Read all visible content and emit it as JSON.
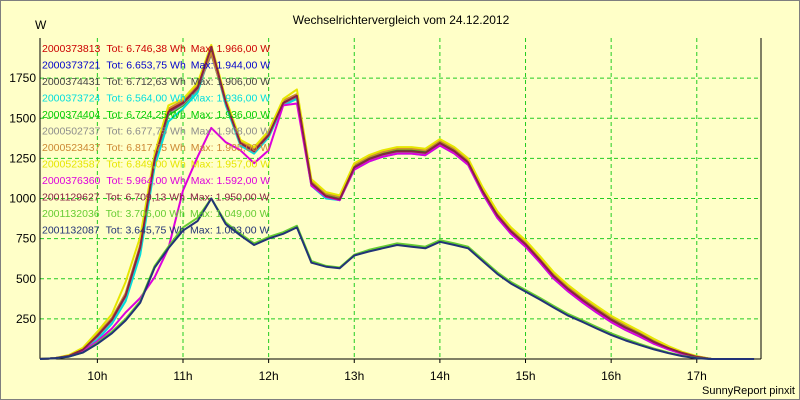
{
  "chart_data": {
    "type": "line",
    "title": "Wechselrichtervergleich vom 24.12.2012",
    "ylabel": "W",
    "footer": "SunnyReport pinxit",
    "ylim": [
      0,
      2000
    ],
    "xlim": [
      9.33,
      17.75
    ],
    "grid": true,
    "legend_placement": "top-left",
    "yticks": [
      250,
      500,
      750,
      1000,
      1250,
      1500,
      1750
    ],
    "xticks": [
      {
        "value": 10,
        "label": "10h"
      },
      {
        "value": 11,
        "label": "11h"
      },
      {
        "value": 12,
        "label": "12h"
      },
      {
        "value": 13,
        "label": "13h"
      },
      {
        "value": 14,
        "label": "14h"
      },
      {
        "value": 15,
        "label": "15h"
      },
      {
        "value": 16,
        "label": "16h"
      },
      {
        "value": 17,
        "label": "17h"
      }
    ],
    "x": [
      9.33,
      9.5,
      9.67,
      9.83,
      10.0,
      10.17,
      10.33,
      10.5,
      10.67,
      10.83,
      11.0,
      11.17,
      11.33,
      11.5,
      11.67,
      11.83,
      12.0,
      12.17,
      12.33,
      12.5,
      12.67,
      12.83,
      13.0,
      13.17,
      13.33,
      13.5,
      13.67,
      13.83,
      14.0,
      14.17,
      14.33,
      14.5,
      14.67,
      14.83,
      15.0,
      15.17,
      15.33,
      15.5,
      15.67,
      15.83,
      16.0,
      16.17,
      16.33,
      16.5,
      16.67,
      16.83,
      17.0,
      17.17,
      17.33,
      17.5,
      17.67
    ],
    "series": [
      {
        "name": "2000373813",
        "total": "Tot: 6.746,38 Wh",
        "max": "Max: 1.966,00 W",
        "color": "#cc0000",
        "values": [
          0,
          5,
          20,
          60,
          150,
          250,
          400,
          700,
          1250,
          1550,
          1600,
          1700,
          1950,
          1600,
          1350,
          1300,
          1400,
          1600,
          1650,
          1100,
          1020,
          1000,
          1200,
          1250,
          1280,
          1300,
          1300,
          1290,
          1350,
          1300,
          1230,
          1050,
          900,
          800,
          720,
          620,
          520,
          440,
          370,
          310,
          250,
          200,
          160,
          110,
          70,
          40,
          15,
          0,
          0,
          0,
          0
        ]
      },
      {
        "name": "2000373721",
        "total": "Tot: 6.653,75 Wh",
        "max": "Max: 1.944,00 W",
        "color": "#0000cc",
        "values": [
          0,
          5,
          18,
          55,
          140,
          240,
          390,
          690,
          1240,
          1530,
          1590,
          1680,
          1935,
          1590,
          1340,
          1290,
          1390,
          1590,
          1630,
          1090,
          1010,
          990,
          1190,
          1240,
          1270,
          1290,
          1290,
          1280,
          1340,
          1290,
          1220,
          1040,
          890,
          790,
          710,
          610,
          510,
          430,
          360,
          300,
          240,
          190,
          150,
          100,
          65,
          35,
          12,
          0,
          0,
          0,
          0
        ]
      },
      {
        "name": "2000374431",
        "total": "Tot: 6.712,63 Wh",
        "max": "Max: 1.906,00 W",
        "color": "#444444",
        "values": [
          0,
          5,
          20,
          58,
          145,
          245,
          395,
          695,
          1245,
          1540,
          1595,
          1690,
          1900,
          1600,
          1345,
          1295,
          1395,
          1595,
          1640,
          1095,
          1015,
          995,
          1195,
          1245,
          1275,
          1295,
          1295,
          1285,
          1345,
          1295,
          1225,
          1045,
          895,
          795,
          715,
          615,
          515,
          435,
          365,
          305,
          245,
          195,
          155,
          105,
          68,
          38,
          14,
          0,
          0,
          0,
          0
        ]
      },
      {
        "name": "2000373724",
        "total": "Tot: 6.564,00 Wh",
        "max": "Max: 1.936,00 W",
        "color": "#00dddd",
        "values": [
          0,
          5,
          18,
          50,
          120,
          220,
          360,
          650,
          1200,
          1480,
          1560,
          1660,
          1925,
          1580,
          1330,
          1280,
          1380,
          1580,
          1620,
          1080,
          1000,
          990,
          1180,
          1230,
          1260,
          1280,
          1280,
          1270,
          1330,
          1280,
          1210,
          1030,
          880,
          780,
          700,
          600,
          500,
          420,
          350,
          290,
          230,
          180,
          140,
          95,
          60,
          32,
          10,
          0,
          0,
          0,
          0
        ]
      },
      {
        "name": "2000374404",
        "total": "Tot: 6.724,25 Wh",
        "max": "Max: 1.936,00 W",
        "color": "#00cc00",
        "values": [
          0,
          5,
          20,
          58,
          145,
          245,
          395,
          700,
          1240,
          1520,
          1580,
          1680,
          1930,
          1600,
          1345,
          1300,
          1395,
          1595,
          1640,
          1095,
          1020,
          1000,
          1200,
          1250,
          1280,
          1300,
          1300,
          1290,
          1350,
          1300,
          1230,
          1050,
          900,
          800,
          720,
          620,
          520,
          440,
          370,
          310,
          250,
          200,
          160,
          110,
          70,
          40,
          15,
          0,
          0,
          0,
          0
        ]
      },
      {
        "name": "2000502737",
        "total": "Tot: 6.677,75 Wh",
        "max": "Max: 1.908,00 W",
        "color": "#8c8c8c",
        "values": [
          0,
          5,
          20,
          55,
          140,
          240,
          390,
          690,
          1235,
          1530,
          1585,
          1680,
          1905,
          1595,
          1340,
          1290,
          1390,
          1590,
          1635,
          1090,
          1015,
          995,
          1195,
          1240,
          1270,
          1290,
          1290,
          1280,
          1340,
          1290,
          1220,
          1040,
          890,
          790,
          710,
          610,
          510,
          430,
          360,
          300,
          240,
          190,
          150,
          100,
          65,
          35,
          12,
          0,
          0,
          0,
          0
        ]
      },
      {
        "name": "2000523437",
        "total": "Tot: 6.817,75 Wh",
        "max": "Max: 1.905,00 W",
        "color": "#cc8833",
        "values": [
          0,
          5,
          22,
          62,
          155,
          255,
          410,
          710,
          1260,
          1560,
          1610,
          1710,
          1905,
          1610,
          1355,
          1310,
          1410,
          1610,
          1650,
          1110,
          1030,
          1010,
          1210,
          1260,
          1290,
          1310,
          1310,
          1300,
          1360,
          1310,
          1240,
          1060,
          910,
          810,
          730,
          630,
          530,
          450,
          380,
          320,
          260,
          210,
          170,
          120,
          75,
          42,
          16,
          0,
          0,
          0,
          0
        ]
      },
      {
        "name": "2000523587",
        "total": "Tot: 6.849,00 Wh",
        "max": "Max: 1.957,00 W",
        "color": "#e6e600",
        "values": [
          0,
          5,
          25,
          70,
          170,
          280,
          480,
          760,
          1280,
          1580,
          1620,
          1720,
          1957,
          1620,
          1365,
          1320,
          1420,
          1620,
          1680,
          1120,
          1040,
          1020,
          1220,
          1270,
          1300,
          1320,
          1320,
          1310,
          1370,
          1320,
          1250,
          1070,
          920,
          820,
          740,
          640,
          540,
          460,
          390,
          330,
          270,
          220,
          175,
          125,
          80,
          45,
          18,
          0,
          0,
          0,
          0
        ]
      },
      {
        "name": "2000376360",
        "total": "Tot: 5.964,00 Wh",
        "max": "Max: 1.592,00 W",
        "color": "#dd00dd",
        "values": [
          0,
          5,
          18,
          50,
          110,
          190,
          290,
          380,
          510,
          690,
          1050,
          1260,
          1440,
          1350,
          1300,
          1220,
          1300,
          1580,
          1592,
          1080,
          1010,
          990,
          1180,
          1230,
          1260,
          1280,
          1280,
          1270,
          1330,
          1280,
          1210,
          1030,
          880,
          780,
          700,
          600,
          500,
          420,
          350,
          290,
          230,
          180,
          140,
          95,
          60,
          32,
          10,
          0,
          0,
          0,
          0
        ]
      },
      {
        "name": "2001129627",
        "total": "Tot: 6.709,13 Wh",
        "max": "Max: 1.950,00 W",
        "color": "#882244",
        "values": [
          0,
          5,
          20,
          58,
          145,
          245,
          395,
          695,
          1245,
          1540,
          1595,
          1690,
          1945,
          1600,
          1345,
          1295,
          1395,
          1595,
          1640,
          1095,
          1015,
          995,
          1195,
          1245,
          1275,
          1295,
          1295,
          1285,
          1345,
          1295,
          1225,
          1045,
          895,
          795,
          715,
          615,
          515,
          435,
          365,
          305,
          245,
          195,
          155,
          105,
          68,
          38,
          14,
          0,
          0,
          0,
          0
        ]
      },
      {
        "name": "2001132036",
        "total": "Tot: 3.706,00 Wh",
        "max": "Max: 1.049,00 W",
        "color": "#66cc33",
        "values": [
          0,
          5,
          15,
          40,
          100,
          170,
          250,
          360,
          580,
          700,
          820,
          880,
          1000,
          850,
          780,
          720,
          760,
          790,
          830,
          610,
          580,
          570,
          650,
          680,
          700,
          720,
          710,
          700,
          740,
          720,
          700,
          620,
          540,
          480,
          430,
          380,
          330,
          280,
          240,
          200,
          160,
          125,
          95,
          65,
          40,
          20,
          6,
          0,
          0,
          0,
          0
        ]
      },
      {
        "name": "2001132087",
        "total": "Tot: 3.645,75 Wh",
        "max": "Max: 1.003,00 W",
        "color": "#223377",
        "values": [
          0,
          5,
          15,
          40,
          95,
          160,
          240,
          350,
          570,
          690,
          800,
          860,
          1000,
          840,
          770,
          710,
          750,
          780,
          820,
          600,
          575,
          565,
          645,
          670,
          690,
          710,
          700,
          690,
          730,
          710,
          690,
          610,
          530,
          470,
          420,
          370,
          320,
          270,
          230,
          190,
          150,
          115,
          88,
          60,
          36,
          18,
          5,
          0,
          0,
          0,
          0
        ]
      }
    ]
  }
}
